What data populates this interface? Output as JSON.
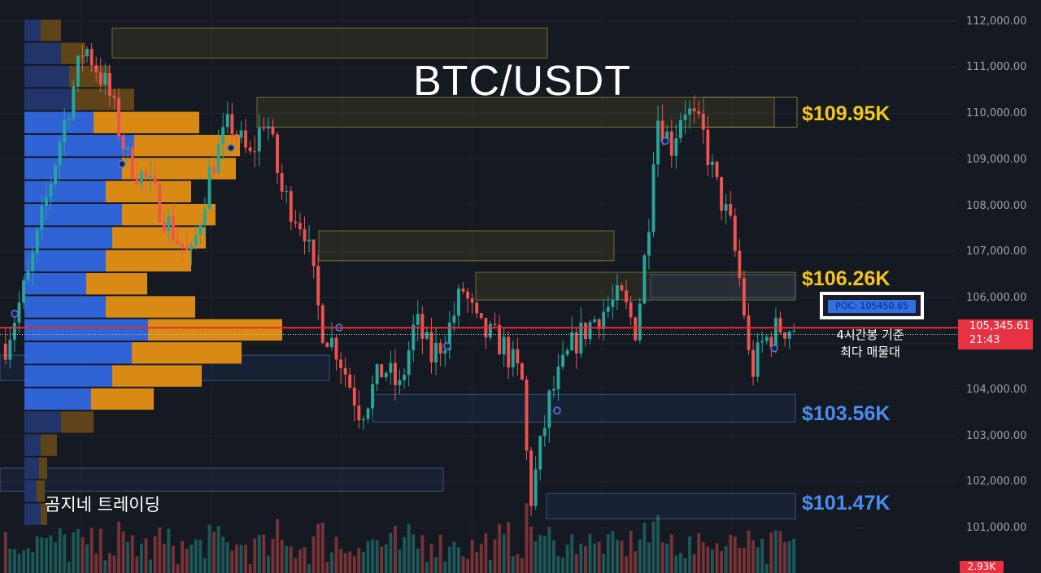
{
  "title": "BTC/USDT",
  "watermark": "곰지네 트레이딩",
  "poc_label": "POC: 105450.65",
  "note_line1": "4시간봉 기준",
  "note_line2": "최다 매물대",
  "price_tag": {
    "price": "105,345.61",
    "time": "21:43"
  },
  "volume_tag": "2.93K",
  "colors": {
    "bull": "#26a69a",
    "bear": "#ef5350",
    "level_high": "#f5c518",
    "level_low": "#4a8cf0",
    "price_line": "#e82d2d"
  },
  "levels": [
    {
      "label": "$109.95K",
      "color": "#f5c518"
    },
    {
      "label": "$106.26K",
      "color": "#f5c518"
    },
    {
      "label": "$103.56K",
      "color": "#4a8cf0"
    },
    {
      "label": "$101.47K",
      "color": "#4a8cf0"
    }
  ],
  "chart_data": {
    "type": "candlestick",
    "symbol": "BTC/USDT",
    "y_ticks": [
      "112,000.00",
      "111,000.00",
      "110,000.00",
      "109,000.00",
      "108,000.00",
      "107,000.00",
      "106,000.00",
      "104,000.00",
      "103,000.00",
      "102,000.00",
      "101,000.00"
    ],
    "ylim": [
      100700,
      112300
    ],
    "current_price": 105345.61,
    "poc": 105450.65,
    "close_path": [
      [
        0,
        105000
      ],
      [
        0.03,
        106500
      ],
      [
        0.07,
        109500
      ],
      [
        0.1,
        111500
      ],
      [
        0.13,
        110500
      ],
      [
        0.155,
        109000
      ],
      [
        0.18,
        108500
      ],
      [
        0.21,
        107500
      ],
      [
        0.235,
        106800
      ],
      [
        0.26,
        108800
      ],
      [
        0.285,
        109800
      ],
      [
        0.31,
        109000
      ],
      [
        0.33,
        110000
      ],
      [
        0.35,
        108300
      ],
      [
        0.38,
        107500
      ],
      [
        0.4,
        105400
      ],
      [
        0.42,
        104900
      ],
      [
        0.45,
        103500
      ],
      [
        0.48,
        104500
      ],
      [
        0.5,
        104000
      ],
      [
        0.52,
        105500
      ],
      [
        0.54,
        104700
      ],
      [
        0.56,
        105200
      ],
      [
        0.58,
        106200
      ],
      [
        0.6,
        105300
      ],
      [
        0.63,
        105000
      ],
      [
        0.655,
        104200
      ],
      [
        0.665,
        101500
      ],
      [
        0.69,
        103800
      ],
      [
        0.72,
        105000
      ],
      [
        0.75,
        105600
      ],
      [
        0.78,
        106000
      ],
      [
        0.8,
        105300
      ],
      [
        0.815,
        107500
      ],
      [
        0.825,
        110000
      ],
      [
        0.845,
        109300
      ],
      [
        0.86,
        110200
      ],
      [
        0.885,
        109500
      ],
      [
        0.9,
        108500
      ],
      [
        0.92,
        107500
      ],
      [
        0.935,
        106000
      ],
      [
        0.945,
        104300
      ],
      [
        0.96,
        105000
      ],
      [
        0.98,
        105350
      ]
    ],
    "volume_profile": [
      {
        "price": 111800,
        "bull": 20,
        "bear": 25
      },
      {
        "price": 111300,
        "bull": 45,
        "bear": 30
      },
      {
        "price": 110800,
        "bull": 55,
        "bear": 50
      },
      {
        "price": 110300,
        "bull": 60,
        "bear": 75
      },
      {
        "price": 109800,
        "bull": 85,
        "bear": 130
      },
      {
        "price": 109300,
        "bull": 135,
        "bear": 130
      },
      {
        "price": 108800,
        "bull": 120,
        "bear": 140
      },
      {
        "price": 108300,
        "bull": 100,
        "bear": 105
      },
      {
        "price": 107800,
        "bull": 120,
        "bear": 115
      },
      {
        "price": 107300,
        "bull": 108,
        "bear": 115
      },
      {
        "price": 106800,
        "bull": 100,
        "bear": 105
      },
      {
        "price": 106300,
        "bull": 76,
        "bear": 75
      },
      {
        "price": 105800,
        "bull": 100,
        "bear": 110
      },
      {
        "price": 105300,
        "bull": 152,
        "bear": 165
      },
      {
        "price": 104800,
        "bull": 132,
        "bear": 135
      },
      {
        "price": 104300,
        "bull": 108,
        "bear": 110
      },
      {
        "price": 103800,
        "bull": 82,
        "bear": 77
      },
      {
        "price": 103300,
        "bull": 45,
        "bear": 40
      },
      {
        "price": 102800,
        "bull": 20,
        "bear": 20
      },
      {
        "price": 102300,
        "bull": 18,
        "bear": 10
      },
      {
        "price": 101800,
        "bull": 15,
        "bear": 10
      },
      {
        "price": 101300,
        "bull": 20,
        "bear": 8
      }
    ],
    "zones": [
      {
        "from": 111200,
        "to": 111850,
        "color": "yellow"
      },
      {
        "from": 109700,
        "to": 110350,
        "color": "yellow"
      },
      {
        "from": 106800,
        "to": 107450,
        "color": "yellow"
      },
      {
        "from": 105950,
        "to": 106550,
        "color": "yellow"
      },
      {
        "from": 106000,
        "to": 106500,
        "color": "blue"
      },
      {
        "from": 104200,
        "to": 104750,
        "color": "blue"
      },
      {
        "from": 103300,
        "to": 103900,
        "color": "blue"
      },
      {
        "from": 101800,
        "to": 102300,
        "color": "blue"
      },
      {
        "from": 101200,
        "to": 101750,
        "color": "blue"
      }
    ]
  }
}
